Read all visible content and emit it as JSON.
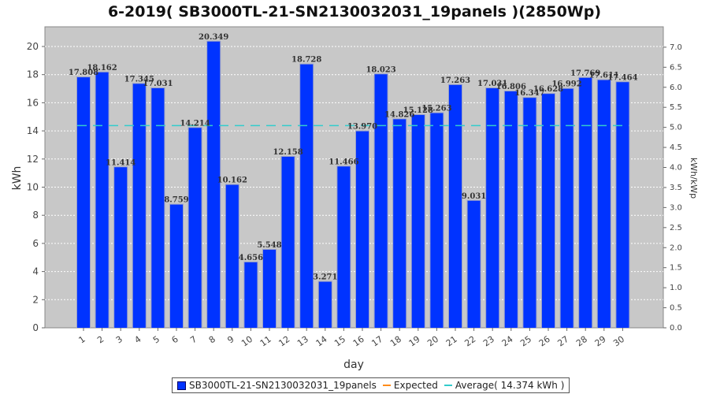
{
  "chart_data": {
    "type": "bar",
    "title": "6-2019( SB3000TL-21-SN2130032031_19panels )(2850Wp)",
    "xlabel": "day",
    "ylabel": "kWh",
    "y2label": "kWh/kWp",
    "categories": [
      "1",
      "2",
      "3",
      "4",
      "5",
      "6",
      "7",
      "8",
      "9",
      "10",
      "11",
      "12",
      "13",
      "14",
      "15",
      "16",
      "17",
      "18",
      "19",
      "20",
      "21",
      "22",
      "23",
      "24",
      "25",
      "26",
      "27",
      "28",
      "29",
      "30"
    ],
    "series": [
      {
        "name": "SB3000TL-21-SN2130032031_19panels",
        "color": "#0033ff",
        "values": [
          17.808,
          18.162,
          11.414,
          17.345,
          17.031,
          8.759,
          14.214,
          20.349,
          10.162,
          4.656,
          5.548,
          12.158,
          18.728,
          3.271,
          11.466,
          13.97,
          18.023,
          14.826,
          15.128,
          15.263,
          17.263,
          9.031,
          17.031,
          16.806,
          16.347,
          16.628,
          16.992,
          17.769,
          17.611,
          17.464
        ],
        "labels": [
          "17.808",
          "18.162",
          "11.414",
          "17.345",
          "17.031",
          "8.759",
          "14.214",
          "20.349",
          "10.162",
          "4.656",
          "5.548",
          "12.158",
          "18.728",
          "3.271",
          "11.466",
          "13.970",
          "18.023",
          "14.826",
          "15.128",
          "15.263",
          "17.263",
          "9.031",
          "17.031",
          "16.806",
          "16.347",
          "16.628",
          "16.992",
          "17.769",
          "17.611",
          "17.464"
        ]
      }
    ],
    "expected": {
      "name": "Expected",
      "color": "#ff8c1a"
    },
    "average": {
      "name": "Average( 14.374 kWh )",
      "value": 14.374,
      "color": "#33cccc"
    },
    "ylim": [
      0,
      21.4
    ],
    "yticks": [
      "0",
      "2",
      "4",
      "6",
      "8",
      "10",
      "12",
      "14",
      "16",
      "18",
      "20"
    ],
    "y2lim": [
      0,
      7.509
    ],
    "y2ticks": [
      "0.0",
      "0.5",
      "1.0",
      "1.5",
      "2.0",
      "2.5",
      "3.0",
      "3.5",
      "4.0",
      "4.5",
      "5.0",
      "5.5",
      "6.0",
      "6.5",
      "7.0"
    ],
    "grid": true,
    "legend_position": "bottom"
  }
}
